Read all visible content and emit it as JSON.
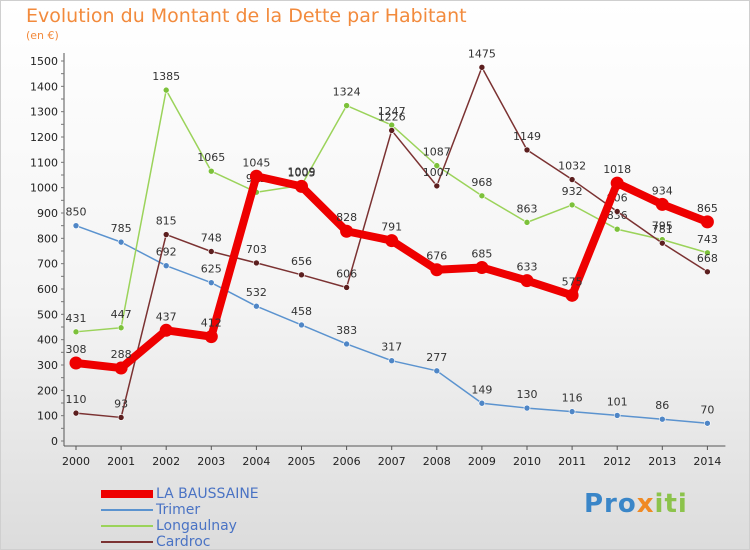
{
  "header": {
    "title": "Evolution du Montant de la Dette par Habitant",
    "unit": "(en €)"
  },
  "logo": {
    "part1": "Pro",
    "part2": "x",
    "part3": "iti"
  },
  "chart_data": {
    "type": "line",
    "title": "Evolution du Montant de la Dette par Habitant",
    "ylabel": "(en €)",
    "xlabel": "",
    "x": [
      "2000",
      "2001",
      "2002",
      "2003",
      "2004",
      "2005",
      "2006",
      "2007",
      "2008",
      "2009",
      "2010",
      "2011",
      "2012",
      "2013",
      "2014"
    ],
    "ylim": [
      0,
      1500
    ],
    "yticks": [
      0,
      100,
      200,
      300,
      400,
      500,
      600,
      700,
      800,
      900,
      1000,
      1100,
      1200,
      1300,
      1400,
      1500
    ],
    "grid": false,
    "legend_position": "bottom-left",
    "series": [
      {
        "name": "Trimer",
        "color": "#5b93cf",
        "pointColor": "#4f86c6",
        "width": 1.5,
        "values": [
          850,
          785,
          692,
          625,
          532,
          458,
          383,
          317,
          277,
          149,
          130,
          116,
          101,
          86,
          70
        ]
      },
      {
        "name": "Longaulnay",
        "color": "#9bd35a",
        "pointColor": "#7cc13a",
        "width": 1.5,
        "values": [
          431,
          447,
          1385,
          1065,
          982,
          1009,
          1324,
          1247,
          1087,
          968,
          863,
          932,
          836,
          795,
          743
        ]
      },
      {
        "name": "Cardroc",
        "color": "#7b3232",
        "pointColor": "#5c1f1f",
        "width": 1.5,
        "values": [
          110,
          93,
          815,
          748,
          703,
          656,
          606,
          1226,
          1007,
          1475,
          1149,
          1032,
          906,
          781,
          668
        ]
      },
      {
        "name": "LA BAUSSAINE",
        "color": "#ee0000",
        "pointColor": "#ee0000",
        "width": 8,
        "values": [
          308,
          288,
          437,
          412,
          1045,
          1005,
          828,
          791,
          676,
          685,
          633,
          575,
          1018,
          934,
          865
        ]
      }
    ],
    "legend_order": [
      "LA BAUSSAINE",
      "Trimer",
      "Longaulnay",
      "Cardroc"
    ]
  }
}
